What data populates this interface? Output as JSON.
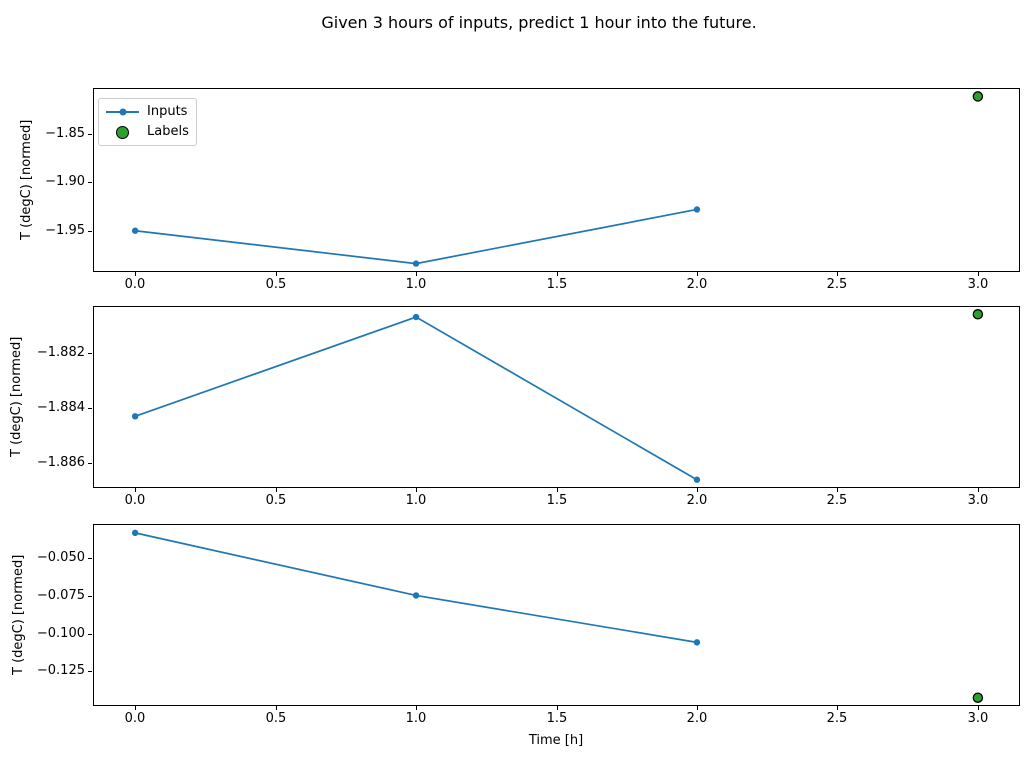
{
  "figure": {
    "title": "Given 3 hours of inputs, predict 1 hour into the future.",
    "xlabel": "Time [h]",
    "ylabel": "T (degC) [normed]"
  },
  "legend": {
    "items": [
      "Inputs",
      "Labels"
    ]
  },
  "colors": {
    "inputs": "#1f77b4",
    "labels_fill": "#2ca02c",
    "labels_edge": "#000000"
  },
  "chart_data": [
    {
      "type": "line",
      "ylabel": "T (degC) [normed]",
      "xlim": [
        -0.15,
        3.15
      ],
      "ylim": [
        -1.9927,
        -1.8023
      ],
      "x_tick_values": [
        0.0,
        0.5,
        1.0,
        1.5,
        2.0,
        2.5,
        3.0
      ],
      "x_tick_labels": [
        "0.0",
        "0.5",
        "1.0",
        "1.5",
        "2.0",
        "2.5",
        "3.0"
      ],
      "y_tick_values": [
        -1.85,
        -1.9,
        -1.95
      ],
      "y_tick_labels": [
        "−1.85",
        "−1.90",
        "−1.95"
      ],
      "series": [
        {
          "name": "Inputs",
          "style": "line+marker",
          "x": [
            0,
            1,
            2
          ],
          "y": [
            -1.95,
            -1.984,
            -1.928
          ]
        },
        {
          "name": "Labels",
          "style": "scatter",
          "x": [
            3
          ],
          "y": [
            -1.811
          ]
        }
      ]
    },
    {
      "type": "line",
      "ylabel": "T (degC) [normed]",
      "xlim": [
        -0.15,
        3.15
      ],
      "ylim": [
        -1.8869,
        -1.8803
      ],
      "x_tick_values": [
        0.0,
        0.5,
        1.0,
        1.5,
        2.0,
        2.5,
        3.0
      ],
      "x_tick_labels": [
        "0.0",
        "0.5",
        "1.0",
        "1.5",
        "2.0",
        "2.5",
        "3.0"
      ],
      "y_tick_values": [
        -1.882,
        -1.884,
        -1.886
      ],
      "y_tick_labels": [
        "−1.882",
        "−1.884",
        "−1.886"
      ],
      "series": [
        {
          "name": "Inputs",
          "style": "line+marker",
          "x": [
            0,
            1,
            2
          ],
          "y": [
            -1.8843,
            -1.8807,
            -1.8866
          ]
        },
        {
          "name": "Labels",
          "style": "scatter",
          "x": [
            3
          ],
          "y": [
            -1.8806
          ]
        }
      ]
    },
    {
      "type": "line",
      "ylabel": "T (degC) [normed]",
      "xlabel": "Time [h]",
      "xlim": [
        -0.15,
        3.15
      ],
      "ylim": [
        -0.1481,
        -0.0271
      ],
      "x_tick_values": [
        0.0,
        0.5,
        1.0,
        1.5,
        2.0,
        2.5,
        3.0
      ],
      "x_tick_labels": [
        "0.0",
        "0.5",
        "1.0",
        "1.5",
        "2.0",
        "2.5",
        "3.0"
      ],
      "y_tick_values": [
        -0.05,
        -0.075,
        -0.1,
        -0.125
      ],
      "y_tick_labels": [
        "−0.050",
        "−0.075",
        "−0.100",
        "−0.125"
      ],
      "series": [
        {
          "name": "Inputs",
          "style": "line+marker",
          "x": [
            0,
            1,
            2
          ],
          "y": [
            -0.033,
            -0.0746,
            -0.1058
          ]
        },
        {
          "name": "Labels",
          "style": "scatter",
          "x": [
            3
          ],
          "y": [
            -0.1426
          ]
        }
      ]
    }
  ]
}
